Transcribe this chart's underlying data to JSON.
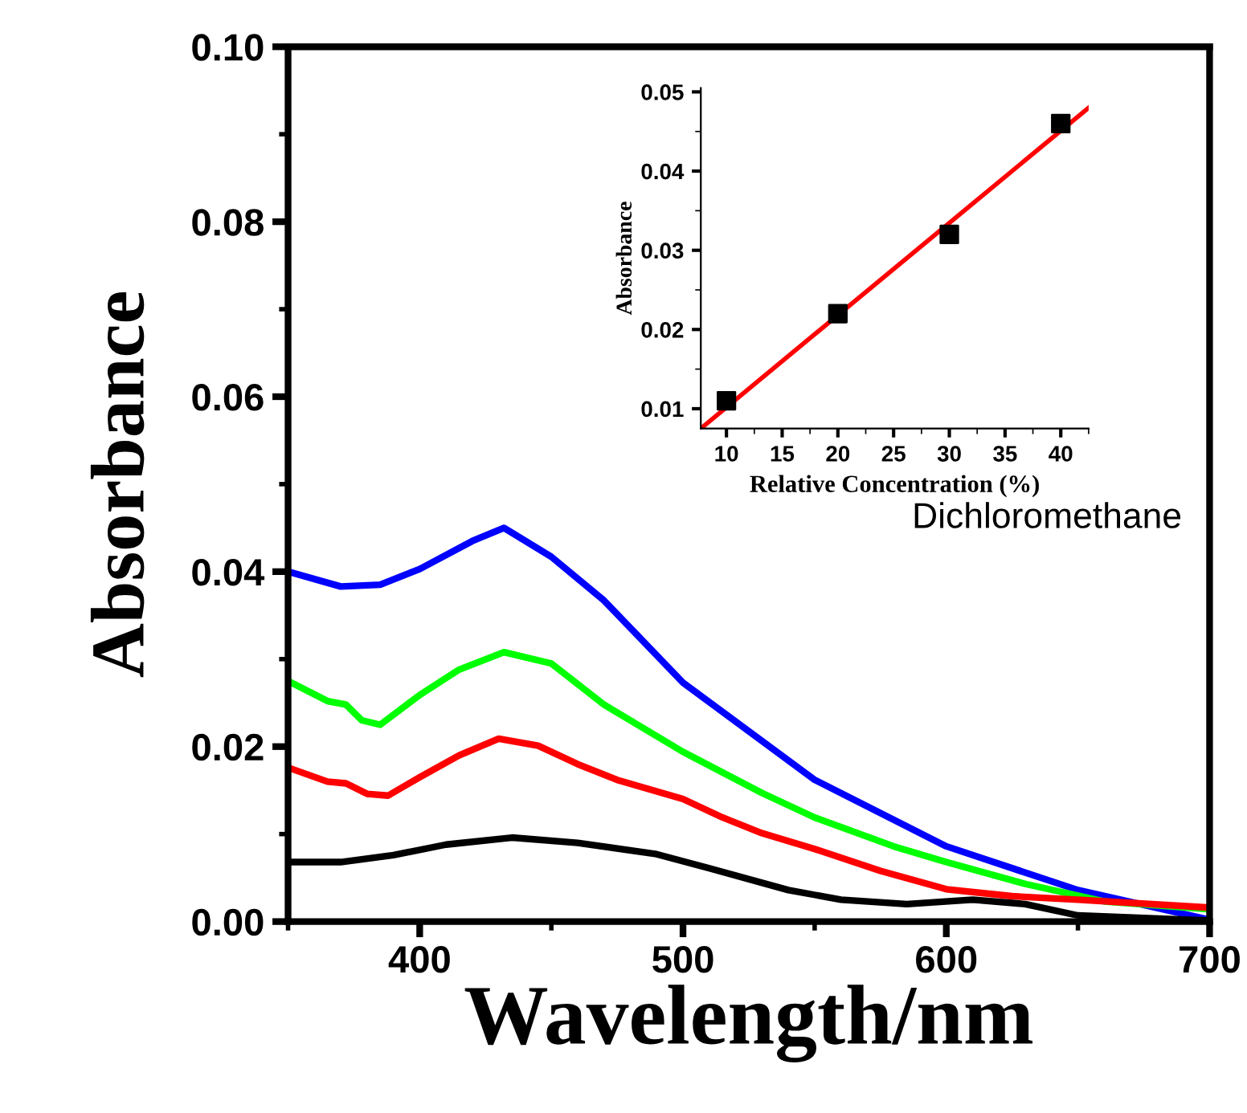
{
  "chart_data": [
    {
      "type": "line",
      "xlabel": "Wavelength/nm",
      "ylabel": "Absorbance",
      "xlim": [
        350,
        700
      ],
      "ylim": [
        0,
        0.1
      ],
      "xticks": [
        400,
        500,
        600,
        700
      ],
      "yticks": [
        {
          "value": 0,
          "label": "0.00"
        },
        {
          "value": 0.02,
          "label": "0.02"
        },
        {
          "value": 0.04,
          "label": "0.04"
        },
        {
          "value": 0.06,
          "label": "0.06"
        },
        {
          "value": 0.08,
          "label": "0.08"
        },
        {
          "value": 0.1,
          "label": "0.10"
        }
      ],
      "annotations": [
        "Dichloromethane"
      ],
      "grid": false,
      "legend": false,
      "marker": "none",
      "line_style": "solid",
      "series": [
        {
          "color": "#0000ff",
          "x": [
            350,
            370,
            385,
            400,
            420,
            432,
            450,
            470,
            500,
            550,
            600,
            650,
            700
          ],
          "values": [
            0.04,
            0.0383,
            0.0385,
            0.0403,
            0.0435,
            0.045,
            0.0417,
            0.0367,
            0.0273,
            0.0162,
            0.0086,
            0.0036,
            0.0002
          ]
        },
        {
          "color": "#00ff00",
          "x": [
            350,
            365,
            372,
            378,
            385,
            400,
            415,
            432,
            450,
            470,
            500,
            530,
            550,
            580,
            600,
            630,
            660,
            700
          ],
          "values": [
            0.0275,
            0.0252,
            0.0248,
            0.023,
            0.0225,
            0.0259,
            0.0288,
            0.0308,
            0.0295,
            0.0248,
            0.0194,
            0.0147,
            0.0119,
            0.0086,
            0.0068,
            0.0043,
            0.0023,
            0.0014
          ]
        },
        {
          "color": "#ff0000",
          "x": [
            350,
            365,
            372,
            380,
            388,
            400,
            415,
            430,
            445,
            460,
            475,
            500,
            515,
            530,
            550,
            575,
            600,
            625,
            650,
            700
          ],
          "values": [
            0.0176,
            0.016,
            0.0158,
            0.0146,
            0.0144,
            0.0165,
            0.019,
            0.0209,
            0.0201,
            0.018,
            0.0162,
            0.014,
            0.0119,
            0.0101,
            0.0083,
            0.0058,
            0.0037,
            0.0029,
            0.0025,
            0.0016
          ]
        },
        {
          "color": "#000000",
          "x": [
            350,
            370,
            390,
            410,
            435,
            460,
            490,
            510,
            540,
            560,
            585,
            610,
            630,
            650,
            700
          ],
          "values": [
            0.0068,
            0.0068,
            0.0076,
            0.0088,
            0.0096,
            0.009,
            0.0077,
            0.0061,
            0.0036,
            0.0025,
            0.002,
            0.0025,
            0.002,
            0.0007,
            0.0001
          ]
        }
      ]
    },
    {
      "type": "scatter",
      "xlabel": "Relative Concentration (%)",
      "ylabel": "Absorbance",
      "xlim": [
        7.7,
        42.5
      ],
      "ylim": [
        0.0075,
        0.0505
      ],
      "xticks": [
        10,
        15,
        20,
        25,
        30,
        35,
        40
      ],
      "yticks": [
        0.01,
        0.02,
        0.03,
        0.04,
        0.05
      ],
      "grid": false,
      "legend": false,
      "series": [
        {
          "type": "scatter",
          "marker": "square",
          "color": "#000000",
          "x": [
            10,
            20,
            30,
            40
          ],
          "values": [
            0.011,
            0.022,
            0.032,
            0.046
          ]
        },
        {
          "type": "line",
          "marker": "none",
          "color": "#ff0000",
          "x": [
            7.7,
            42.5
          ],
          "values": [
            0.0075,
            0.048
          ]
        }
      ]
    }
  ]
}
